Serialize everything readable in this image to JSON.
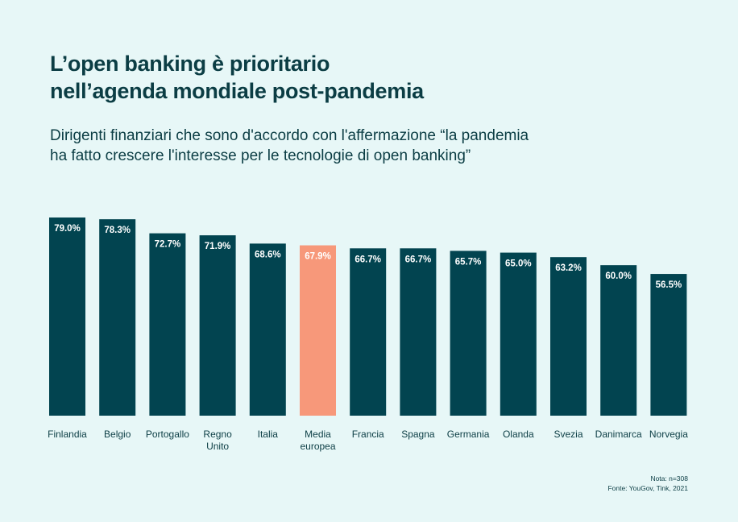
{
  "title_lines": [
    "L’open banking è prioritario",
    "nell’agenda mondiale post-pandemia"
  ],
  "subtitle_lines": [
    "Dirigenti finanziari che sono d'accordo con l'affermazione “la pandemia",
    "ha fatto crescere l'interesse per le tecnologie di open banking”"
  ],
  "notes": {
    "nota": "Nota: n=308",
    "fonte": "Fonte: YouGov, Tink, 2021"
  },
  "colors": {
    "bar": "#024450",
    "highlight": "#f7987a",
    "background": "#e7f7f7"
  },
  "chart_data": {
    "type": "bar",
    "categories": [
      "Finlandia",
      "Belgio",
      "Portogallo",
      "Regno Unito",
      "Italia",
      "Media europea",
      "Francia",
      "Spagna",
      "Germania",
      "Olanda",
      "Svezia",
      "Danimarca",
      "Norvegia"
    ],
    "category_lines": [
      [
        "Finlandia"
      ],
      [
        "Belgio"
      ],
      [
        "Portogallo"
      ],
      [
        "Regno",
        "Unito"
      ],
      [
        "Italia"
      ],
      [
        "Media",
        "europea"
      ],
      [
        "Francia"
      ],
      [
        "Spagna"
      ],
      [
        "Germania"
      ],
      [
        "Olanda"
      ],
      [
        "Svezia"
      ],
      [
        "Danimarca"
      ],
      [
        "Norvegia"
      ]
    ],
    "values": [
      79.0,
      78.3,
      72.7,
      71.9,
      68.6,
      67.9,
      66.7,
      66.7,
      65.7,
      65.0,
      63.2,
      60.0,
      56.5
    ],
    "data_labels": [
      "79.0%",
      "78.3%",
      "72.7%",
      "71.9%",
      "68.6%",
      "67.9%",
      "66.7%",
      "66.7%",
      "65.7%",
      "65.0%",
      "63.2%",
      "60.0%",
      "56.5%"
    ],
    "highlighted_category": "Media europea",
    "ylim": [
      0,
      100
    ],
    "grid": false,
    "axes_visible": false
  }
}
